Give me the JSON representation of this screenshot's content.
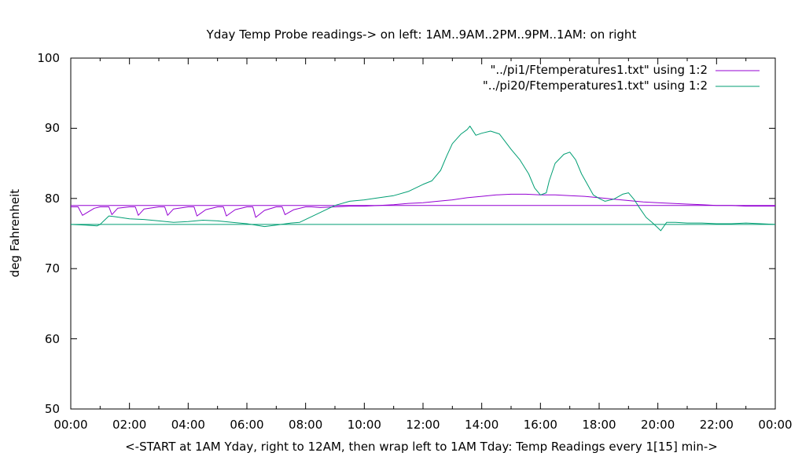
{
  "chart_data": {
    "type": "line",
    "title": "Yday Temp Probe readings-> on left: 1AM..9AM..2PM..9PM..1AM: on right",
    "xlabel": "<-START at 1AM Yday, right to 12AM, then wrap left to 1AM Tday: Temp Readings every 1[15] min->",
    "ylabel": "deg Fahrenheit",
    "xlim": [
      0,
      24
    ],
    "ylim": [
      50,
      100
    ],
    "x_ticks": [
      "00:00",
      "02:00",
      "04:00",
      "06:00",
      "08:00",
      "10:00",
      "12:00",
      "14:00",
      "16:00",
      "18:00",
      "20:00",
      "22:00",
      "00:00"
    ],
    "y_ticks": [
      "100",
      "90",
      "80",
      "70",
      "60",
      "50"
    ],
    "grid": false,
    "legend": "top-right",
    "series": [
      {
        "name": "\"../pi1/Ftemperatures1.txt\" using 1:2",
        "color": "#9400d3",
        "x": [
          0,
          0.25,
          0.4,
          0.8,
          1.0,
          1.3,
          1.4,
          1.6,
          2.0,
          2.2,
          2.3,
          2.5,
          3.0,
          3.2,
          3.3,
          3.5,
          4.0,
          4.2,
          4.3,
          4.6,
          5.0,
          5.2,
          5.3,
          5.6,
          6.0,
          6.2,
          6.3,
          6.6,
          7.0,
          7.2,
          7.3,
          7.6,
          8.0,
          8.2,
          8.5,
          9.0,
          9.5,
          10.0,
          10.5,
          11.0,
          11.5,
          12.0,
          12.5,
          13.0,
          13.5,
          14.0,
          14.5,
          15.0,
          15.5,
          16.0,
          16.5,
          17.0,
          17.5,
          18.0,
          18.5,
          19.0,
          19.5,
          20.0,
          20.5,
          21.0,
          21.5,
          22.0,
          22.5,
          23.0,
          23.5,
          24.0
        ],
        "y": [
          78.8,
          78.8,
          77.6,
          78.6,
          78.8,
          78.8,
          77.7,
          78.6,
          78.8,
          78.8,
          77.6,
          78.5,
          78.8,
          78.8,
          77.6,
          78.5,
          78.8,
          78.8,
          77.5,
          78.4,
          78.8,
          78.8,
          77.5,
          78.4,
          78.8,
          78.8,
          77.3,
          78.3,
          78.8,
          78.8,
          77.7,
          78.4,
          78.8,
          78.8,
          78.7,
          78.8,
          78.9,
          78.9,
          79.0,
          79.1,
          79.3,
          79.4,
          79.6,
          79.8,
          80.1,
          80.3,
          80.5,
          80.6,
          80.6,
          80.5,
          80.5,
          80.4,
          80.3,
          80.1,
          79.9,
          79.7,
          79.5,
          79.4,
          79.3,
          79.2,
          79.1,
          79.0,
          79.0,
          78.9,
          78.9,
          78.9
        ],
        "flat_value": 79.0
      },
      {
        "name": "\"../pi20/Ftemperatures1.txt\" using 1:2",
        "color": "#009e73",
        "x": [
          0,
          0.5,
          0.9,
          1.0,
          1.3,
          1.5,
          2.0,
          2.5,
          3.0,
          3.5,
          4.0,
          4.5,
          5.0,
          5.5,
          6.0,
          6.3,
          6.6,
          7.0,
          7.5,
          7.8,
          8.0,
          8.5,
          9.0,
          9.5,
          10.0,
          10.5,
          11.0,
          11.5,
          12.0,
          12.3,
          12.6,
          12.8,
          13.0,
          13.3,
          13.5,
          13.6,
          13.8,
          14.0,
          14.3,
          14.6,
          15.0,
          15.3,
          15.6,
          15.8,
          16.0,
          16.2,
          16.3,
          16.5,
          16.8,
          17.0,
          17.2,
          17.4,
          17.6,
          17.8,
          18.0,
          18.2,
          18.5,
          18.8,
          19.0,
          19.2,
          19.4,
          19.6,
          19.8,
          20.0,
          20.1,
          20.3,
          20.6,
          21.0,
          21.5,
          22.0,
          22.5,
          23.0,
          23.5,
          24.0
        ],
        "y": [
          76.3,
          76.2,
          76.1,
          76.3,
          77.5,
          77.4,
          77.1,
          77.0,
          76.8,
          76.6,
          76.7,
          76.9,
          76.8,
          76.6,
          76.4,
          76.2,
          76.0,
          76.2,
          76.5,
          76.6,
          77.0,
          78.0,
          79.0,
          79.6,
          79.8,
          80.1,
          80.4,
          81.0,
          82.0,
          82.5,
          84.0,
          86.0,
          87.8,
          89.2,
          89.8,
          90.3,
          89.0,
          89.3,
          89.6,
          89.2,
          87.0,
          85.5,
          83.5,
          81.5,
          80.5,
          80.8,
          82.5,
          85.0,
          86.3,
          86.6,
          85.5,
          83.5,
          82.0,
          80.5,
          80.0,
          79.6,
          79.9,
          80.6,
          80.8,
          79.8,
          78.5,
          77.3,
          76.6,
          75.8,
          75.4,
          76.6,
          76.6,
          76.5,
          76.5,
          76.4,
          76.4,
          76.5,
          76.4,
          76.3
        ],
        "flat_value": 76.3
      }
    ]
  }
}
